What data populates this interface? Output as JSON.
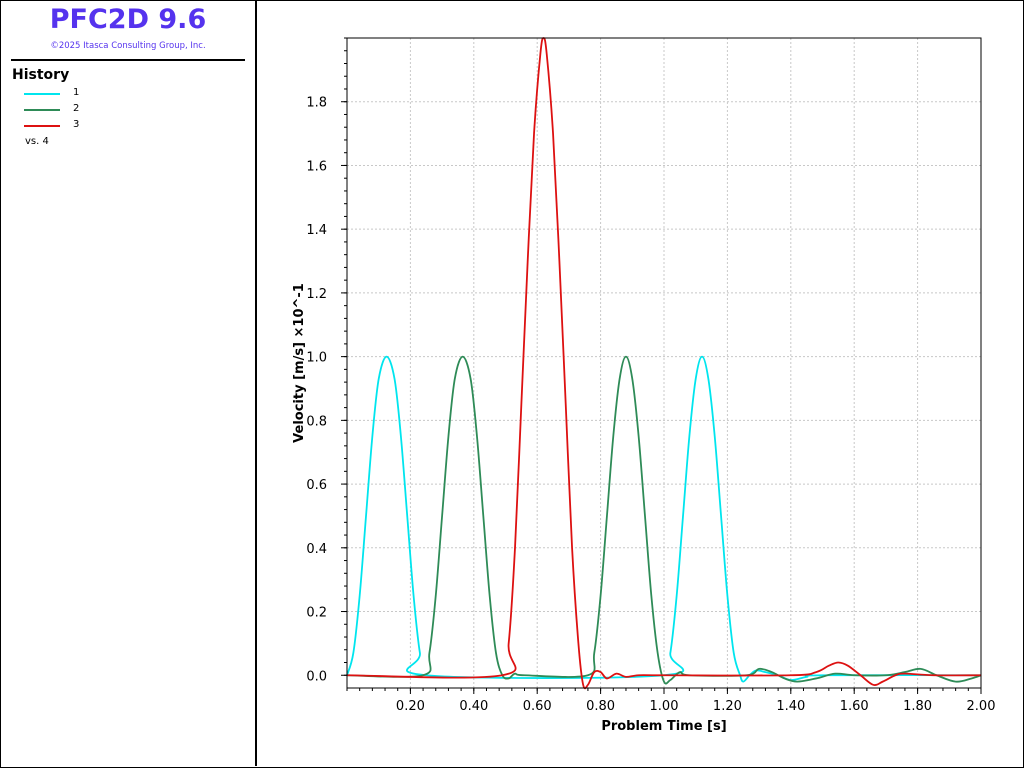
{
  "app": {
    "title": "PFC2D 9.6",
    "copyright": "©2025 Itasca Consulting Group, Inc."
  },
  "legend": {
    "title": "History",
    "items": [
      {
        "label": "1",
        "color": "#00e5ee"
      },
      {
        "label": "2",
        "color": "#2e8b57"
      },
      {
        "label": "3",
        "color": "#dd1111"
      }
    ],
    "vs_label": "vs. 4"
  },
  "chart_data": {
    "type": "line",
    "xlabel": "Problem Time [s]",
    "ylabel": "Velocity [m/s] ×10^-1",
    "xlim": [
      0,
      2.0
    ],
    "ylim": [
      -0.04,
      2.0
    ],
    "x_ticks": [
      "0.20",
      "0.40",
      "0.60",
      "0.80",
      "1.00",
      "1.20",
      "1.40",
      "1.60",
      "1.80",
      "2.00"
    ],
    "y_ticks": [
      "0.0",
      "0.2",
      "0.4",
      "0.6",
      "0.8",
      "1.0",
      "1.2",
      "1.4",
      "1.6",
      "1.8"
    ],
    "grid": true,
    "series": [
      {
        "name": "1",
        "color": "#00e5ee",
        "points": [
          [
            0.0,
            0.0
          ],
          [
            0.02,
            0.07
          ],
          [
            0.04,
            0.25
          ],
          [
            0.06,
            0.5
          ],
          [
            0.08,
            0.75
          ],
          [
            0.1,
            0.93
          ],
          [
            0.125,
            1.0
          ],
          [
            0.15,
            0.93
          ],
          [
            0.17,
            0.75
          ],
          [
            0.19,
            0.5
          ],
          [
            0.21,
            0.25
          ],
          [
            0.23,
            0.07
          ],
          [
            0.25,
            0.0
          ],
          [
            1.0,
            0.0
          ],
          [
            1.02,
            0.07
          ],
          [
            1.04,
            0.25
          ],
          [
            1.06,
            0.5
          ],
          [
            1.08,
            0.75
          ],
          [
            1.1,
            0.93
          ],
          [
            1.12,
            1.0
          ],
          [
            1.14,
            0.93
          ],
          [
            1.16,
            0.75
          ],
          [
            1.18,
            0.5
          ],
          [
            1.2,
            0.25
          ],
          [
            1.22,
            0.07
          ],
          [
            1.24,
            0.0
          ],
          [
            1.25,
            -0.02
          ],
          [
            1.27,
            0.0
          ],
          [
            1.29,
            0.015
          ],
          [
            1.32,
            0.01
          ],
          [
            1.36,
            0.0
          ],
          [
            1.4,
            -0.015
          ],
          [
            1.45,
            -0.005
          ],
          [
            1.5,
            0.0
          ],
          [
            2.0,
            0.0
          ]
        ]
      },
      {
        "name": "2",
        "color": "#2e8b57",
        "points": [
          [
            0.0,
            0.0
          ],
          [
            0.24,
            0.0
          ],
          [
            0.26,
            0.07
          ],
          [
            0.28,
            0.25
          ],
          [
            0.3,
            0.5
          ],
          [
            0.32,
            0.75
          ],
          [
            0.34,
            0.93
          ],
          [
            0.365,
            1.0
          ],
          [
            0.39,
            0.93
          ],
          [
            0.41,
            0.75
          ],
          [
            0.43,
            0.5
          ],
          [
            0.45,
            0.25
          ],
          [
            0.47,
            0.07
          ],
          [
            0.49,
            0.0
          ],
          [
            0.51,
            -0.01
          ],
          [
            0.53,
            0.005
          ],
          [
            0.56,
            0.0
          ],
          [
            0.76,
            0.0
          ],
          [
            0.78,
            0.07
          ],
          [
            0.8,
            0.25
          ],
          [
            0.82,
            0.5
          ],
          [
            0.84,
            0.75
          ],
          [
            0.86,
            0.93
          ],
          [
            0.88,
            1.0
          ],
          [
            0.9,
            0.93
          ],
          [
            0.92,
            0.75
          ],
          [
            0.94,
            0.5
          ],
          [
            0.96,
            0.25
          ],
          [
            0.98,
            0.07
          ],
          [
            1.0,
            -0.02
          ],
          [
            1.02,
            -0.015
          ],
          [
            1.05,
            0.01
          ],
          [
            1.08,
            0.0
          ],
          [
            1.26,
            0.0
          ],
          [
            1.3,
            0.02
          ],
          [
            1.34,
            0.01
          ],
          [
            1.38,
            -0.01
          ],
          [
            1.42,
            -0.02
          ],
          [
            1.48,
            -0.01
          ],
          [
            1.54,
            0.005
          ],
          [
            1.6,
            0.0
          ],
          [
            1.7,
            0.0
          ],
          [
            1.76,
            0.01
          ],
          [
            1.81,
            0.02
          ],
          [
            1.86,
            0.0
          ],
          [
            1.92,
            -0.02
          ],
          [
            1.97,
            -0.01
          ],
          [
            2.0,
            0.0
          ]
        ]
      },
      {
        "name": "3",
        "color": "#dd1111",
        "points": [
          [
            0.0,
            0.0
          ],
          [
            0.49,
            0.0
          ],
          [
            0.51,
            0.1
          ],
          [
            0.53,
            0.4
          ],
          [
            0.55,
            0.85
          ],
          [
            0.57,
            1.3
          ],
          [
            0.59,
            1.7
          ],
          [
            0.61,
            1.95
          ],
          [
            0.62,
            2.0
          ],
          [
            0.63,
            1.95
          ],
          [
            0.65,
            1.7
          ],
          [
            0.67,
            1.3
          ],
          [
            0.69,
            0.85
          ],
          [
            0.71,
            0.4
          ],
          [
            0.73,
            0.1
          ],
          [
            0.745,
            -0.03
          ],
          [
            0.76,
            -0.03
          ],
          [
            0.78,
            0.01
          ],
          [
            0.8,
            0.01
          ],
          [
            0.82,
            -0.01
          ],
          [
            0.85,
            0.005
          ],
          [
            0.88,
            -0.005
          ],
          [
            0.92,
            0.0
          ],
          [
            1.0,
            0.0
          ],
          [
            1.4,
            0.0
          ],
          [
            1.48,
            0.01
          ],
          [
            1.52,
            0.03
          ],
          [
            1.55,
            0.04
          ],
          [
            1.58,
            0.03
          ],
          [
            1.62,
            0.0
          ],
          [
            1.66,
            -0.03
          ],
          [
            1.69,
            -0.02
          ],
          [
            1.73,
            0.0
          ],
          [
            1.76,
            0.005
          ],
          [
            1.85,
            0.0
          ],
          [
            2.0,
            0.0
          ]
        ]
      }
    ]
  }
}
